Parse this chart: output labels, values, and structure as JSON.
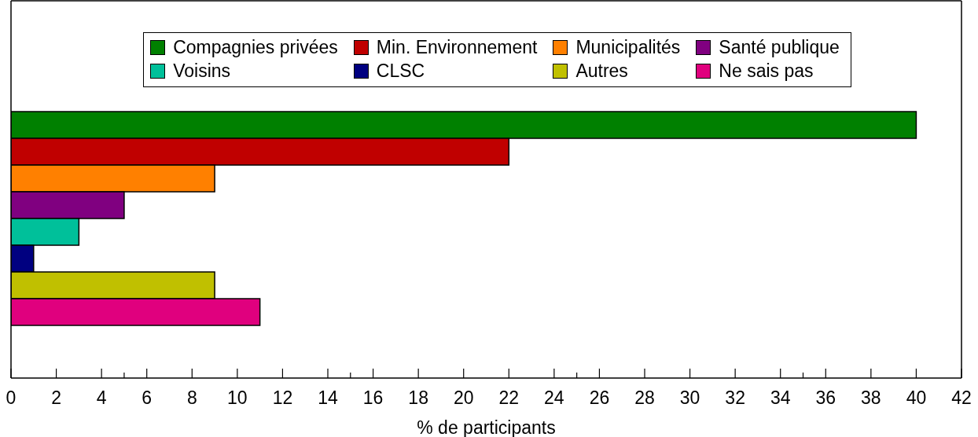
{
  "chart_data": {
    "type": "bar",
    "orientation": "horizontal",
    "categories": [
      null
    ],
    "series": [
      {
        "name": "Compagnies privées",
        "color": "#008000",
        "values": [
          40
        ]
      },
      {
        "name": "Min. Environnement",
        "color": "#c00000",
        "values": [
          22
        ]
      },
      {
        "name": "Municipalités",
        "color": "#ff8000",
        "values": [
          9
        ]
      },
      {
        "name": "Santé publique",
        "color": "#800080",
        "values": [
          5
        ]
      },
      {
        "name": "Voisins",
        "color": "#00c09a",
        "values": [
          3
        ]
      },
      {
        "name": "CLSC",
        "color": "#000080",
        "values": [
          1
        ]
      },
      {
        "name": "Autres",
        "color": "#c0c000",
        "values": [
          9
        ]
      },
      {
        "name": "Ne sais pas",
        "color": "#e0007e",
        "values": [
          11
        ]
      }
    ],
    "xlabel": "% de participants",
    "xlim": [
      0,
      42
    ],
    "xticks": [
      0,
      2,
      4,
      {
        "value": 5,
        "label": null
      },
      6,
      8,
      10,
      12,
      14,
      {
        "value": 15,
        "label": null
      },
      16,
      18,
      20,
      22,
      24,
      {
        "value": 25,
        "label": null
      },
      26,
      28,
      30,
      32,
      34,
      {
        "value": 35,
        "label": null
      },
      36,
      38,
      40,
      42
    ],
    "legend": "top"
  }
}
